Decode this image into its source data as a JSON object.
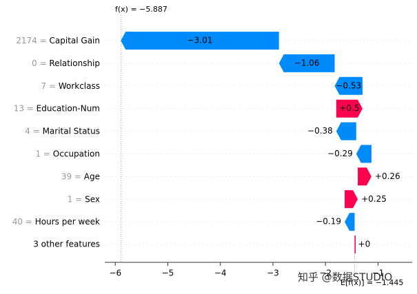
{
  "chart_data": {
    "type": "waterfall",
    "categories": [
      "2174 = Capital Gain",
      "0 = Relationship",
      "7 = Workclass",
      "13 = Education-Num",
      "4 = Marital Status",
      "1 = Occupation",
      "39 = Age",
      "1 = Sex",
      "40 = Hours per week",
      "3 other features"
    ],
    "values": [
      -3.01,
      -1.06,
      -0.53,
      0.5,
      -0.38,
      -0.29,
      0.26,
      0.25,
      -0.19,
      0
    ],
    "value_labels": [
      "−3.01",
      "−1.06",
      "−0.53",
      "+0.5",
      "−0.38",
      "−0.29",
      "+0.26",
      "+0.25",
      "−0.19",
      "+0"
    ],
    "base_value": -1.445,
    "base_label": "E[f(x)] = −1.445",
    "output_value": -5.887,
    "output_label": "f(x) = −5.887",
    "positive_color": "#ff0051",
    "negative_color": "#008bfb",
    "xlim": [
      -6.2,
      -0.35
    ],
    "xticks": [
      {
        "value": -6,
        "label": "−6"
      },
      {
        "value": -5,
        "label": "−5"
      },
      {
        "value": -4,
        "label": "−4"
      },
      {
        "value": -3,
        "label": "−3"
      },
      {
        "value": -2,
        "label": "−2"
      },
      {
        "value": -1,
        "label": "−1"
      }
    ],
    "watermark": "知乎 @数据STUDIO"
  }
}
